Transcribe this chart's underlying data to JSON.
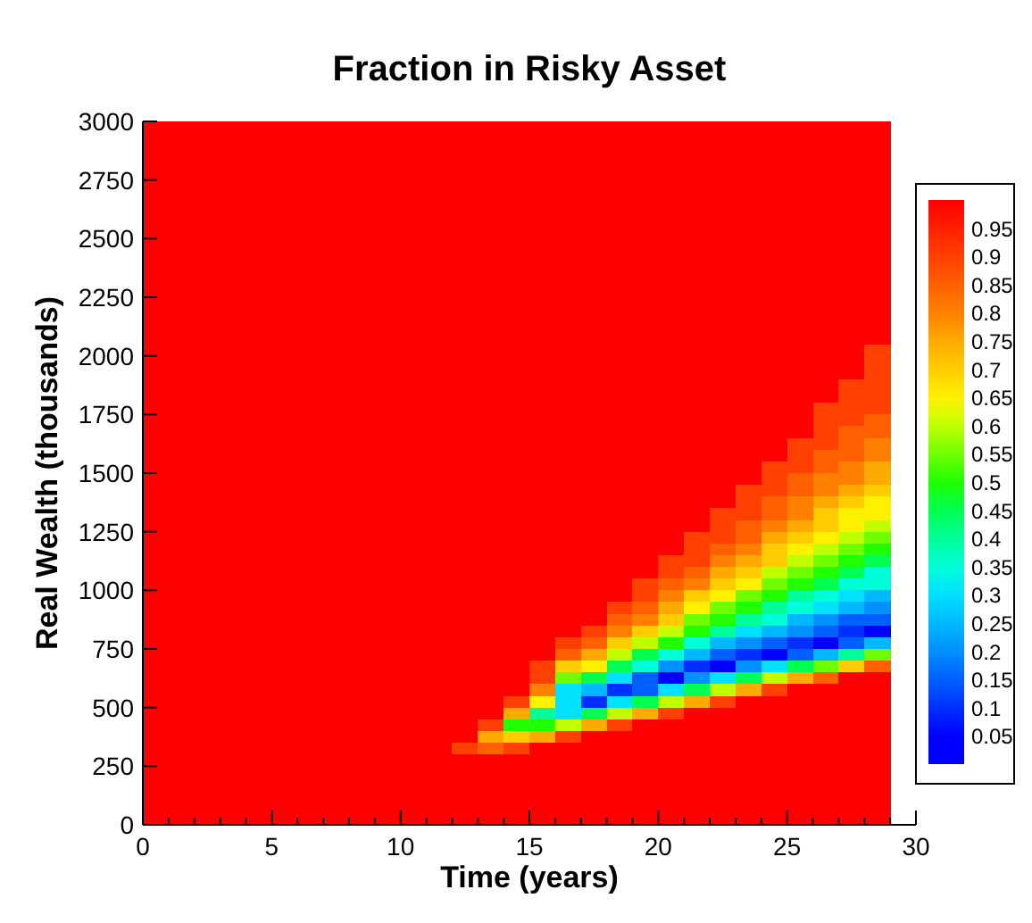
{
  "chart_data": {
    "type": "heatmap",
    "title": "Fraction in Risky Asset",
    "xlabel": "Time (years)",
    "ylabel": "Real Wealth (thousands)",
    "xlim": [
      0,
      30
    ],
    "ylim": [
      0,
      3000
    ],
    "xticks": [
      0,
      {
        "value": 1,
        "label": null
      },
      {
        "value": 2,
        "label": null
      },
      {
        "value": 3,
        "label": null
      },
      {
        "value": 4,
        "label": null
      },
      5,
      {
        "value": 6,
        "label": null
      },
      {
        "value": 7,
        "label": null
      },
      {
        "value": 8,
        "label": null
      },
      {
        "value": 9,
        "label": null
      },
      10,
      {
        "value": 11,
        "label": null
      },
      {
        "value": 12,
        "label": null
      },
      {
        "value": 13,
        "label": null
      },
      {
        "value": 14,
        "label": null
      },
      15,
      {
        "value": 16,
        "label": null
      },
      {
        "value": 17,
        "label": null
      },
      {
        "value": 18,
        "label": null
      },
      {
        "value": 19,
        "label": null
      },
      20,
      {
        "value": 21,
        "label": null
      },
      {
        "value": 22,
        "label": null
      },
      {
        "value": 23,
        "label": null
      },
      {
        "value": 24,
        "label": null
      },
      25,
      {
        "value": 26,
        "label": null
      },
      {
        "value": 27,
        "label": null
      },
      {
        "value": 28,
        "label": null
      },
      {
        "value": 29,
        "label": null
      },
      30
    ],
    "yticks": [
      0,
      250,
      500,
      750,
      1000,
      1250,
      1500,
      1750,
      2000,
      2250,
      2500,
      2750,
      3000
    ],
    "cticks": [
      0.05,
      0.1,
      0.15,
      0.2,
      0.25,
      0.3,
      0.35,
      0.4,
      0.45,
      0.5,
      0.55,
      0.6,
      0.65,
      0.7,
      0.75,
      0.8,
      0.85,
      0.9,
      0.95
    ],
    "clim": [
      0,
      1
    ],
    "x": [
      0.5,
      1.5,
      2.5,
      3.5,
      4.5,
      5.5,
      6.5,
      7.5,
      8.5,
      9.5,
      10.5,
      11.5,
      12.5,
      13.5,
      14.5,
      15.5,
      16.5,
      17.5,
      18.5,
      19.5,
      20.5,
      21.5,
      22.5,
      23.5,
      24.5,
      25.5,
      26.5,
      27.5,
      28.5
    ],
    "y": [
      2975,
      2925,
      2875,
      2825,
      2775,
      2725,
      2675,
      2625,
      2575,
      2525,
      2475,
      2425,
      2375,
      2325,
      2275,
      2225,
      2175,
      2125,
      2075,
      2025,
      1975,
      1925,
      1875,
      1825,
      1775,
      1725,
      1675,
      1625,
      1575,
      1525,
      1475,
      1425,
      1375,
      1325,
      1275,
      1225,
      1175,
      1125,
      1075,
      1025,
      975,
      925,
      875,
      825,
      775,
      725,
      675,
      625,
      575,
      525,
      475,
      425,
      375,
      325,
      275,
      225,
      175,
      125,
      75,
      25
    ],
    "cells": [
      [
        1,
        1,
        1,
        1,
        1,
        1,
        1,
        1,
        1,
        1,
        1,
        1,
        1,
        1,
        1,
        1,
        1,
        1,
        1,
        1,
        1,
        1,
        1,
        1,
        1,
        1,
        1,
        1,
        1
      ],
      [
        1,
        1,
        1,
        1,
        1,
        1,
        1,
        1,
        1,
        1,
        1,
        1,
        1,
        1,
        1,
        1,
        1,
        1,
        1,
        1,
        1,
        1,
        1,
        1,
        1,
        1,
        1,
        1,
        1
      ],
      [
        1,
        1,
        1,
        1,
        1,
        1,
        1,
        1,
        1,
        1,
        1,
        1,
        1,
        1,
        1,
        1,
        1,
        1,
        1,
        1,
        1,
        1,
        1,
        1,
        1,
        1,
        1,
        1,
        1
      ],
      [
        1,
        1,
        1,
        1,
        1,
        1,
        1,
        1,
        1,
        1,
        1,
        1,
        1,
        1,
        1,
        1,
        1,
        1,
        1,
        1,
        1,
        1,
        1,
        1,
        1,
        1,
        1,
        1,
        1
      ],
      [
        1,
        1,
        1,
        1,
        1,
        1,
        1,
        1,
        1,
        1,
        1,
        1,
        1,
        1,
        1,
        1,
        1,
        1,
        1,
        1,
        1,
        1,
        1,
        1,
        1,
        1,
        1,
        1,
        1
      ],
      [
        1,
        1,
        1,
        1,
        1,
        1,
        1,
        1,
        1,
        1,
        1,
        1,
        1,
        1,
        1,
        1,
        1,
        1,
        1,
        1,
        1,
        1,
        1,
        1,
        1,
        1,
        1,
        1,
        1
      ],
      [
        1,
        1,
        1,
        1,
        1,
        1,
        1,
        1,
        1,
        1,
        1,
        1,
        1,
        1,
        1,
        1,
        1,
        1,
        1,
        1,
        1,
        1,
        1,
        1,
        1,
        1,
        1,
        1,
        1
      ],
      [
        1,
        1,
        1,
        1,
        1,
        1,
        1,
        1,
        1,
        1,
        1,
        1,
        1,
        1,
        1,
        1,
        1,
        1,
        1,
        1,
        1,
        1,
        1,
        1,
        1,
        1,
        1,
        1,
        1
      ],
      [
        1,
        1,
        1,
        1,
        1,
        1,
        1,
        1,
        1,
        1,
        1,
        1,
        1,
        1,
        1,
        1,
        1,
        1,
        1,
        1,
        1,
        1,
        1,
        1,
        1,
        1,
        1,
        1,
        1
      ],
      [
        1,
        1,
        1,
        1,
        1,
        1,
        1,
        1,
        1,
        1,
        1,
        1,
        1,
        1,
        1,
        1,
        1,
        1,
        1,
        1,
        1,
        1,
        1,
        1,
        1,
        1,
        1,
        1,
        1
      ],
      [
        1,
        1,
        1,
        1,
        1,
        1,
        1,
        1,
        1,
        1,
        1,
        1,
        1,
        1,
        1,
        1,
        1,
        1,
        1,
        1,
        1,
        1,
        1,
        1,
        1,
        1,
        1,
        1,
        1
      ],
      [
        1,
        1,
        1,
        1,
        1,
        1,
        1,
        1,
        1,
        1,
        1,
        1,
        1,
        1,
        1,
        1,
        1,
        1,
        1,
        1,
        1,
        1,
        1,
        1,
        1,
        1,
        1,
        1,
        1
      ],
      [
        1,
        1,
        1,
        1,
        1,
        1,
        1,
        1,
        1,
        1,
        1,
        1,
        1,
        1,
        1,
        1,
        1,
        1,
        1,
        1,
        1,
        1,
        1,
        1,
        1,
        1,
        1,
        1,
        1
      ],
      [
        1,
        1,
        1,
        1,
        1,
        1,
        1,
        1,
        1,
        1,
        1,
        1,
        1,
        1,
        1,
        1,
        1,
        1,
        1,
        1,
        1,
        1,
        1,
        1,
        1,
        1,
        1,
        1,
        1
      ],
      [
        1,
        1,
        1,
        1,
        1,
        1,
        1,
        1,
        1,
        1,
        1,
        1,
        1,
        1,
        1,
        1,
        1,
        1,
        1,
        1,
        1,
        1,
        1,
        1,
        1,
        1,
        1,
        1,
        1
      ],
      [
        1,
        1,
        1,
        1,
        1,
        1,
        1,
        1,
        1,
        1,
        1,
        1,
        1,
        1,
        1,
        1,
        1,
        1,
        1,
        1,
        1,
        1,
        1,
        1,
        1,
        1,
        1,
        1,
        1
      ],
      [
        1,
        1,
        1,
        1,
        1,
        1,
        1,
        1,
        1,
        1,
        1,
        1,
        1,
        1,
        1,
        1,
        1,
        1,
        1,
        1,
        1,
        1,
        1,
        1,
        1,
        1,
        1,
        1,
        1
      ],
      [
        1,
        1,
        1,
        1,
        1,
        1,
        1,
        1,
        1,
        1,
        1,
        1,
        1,
        1,
        1,
        1,
        1,
        1,
        1,
        1,
        1,
        1,
        1,
        1,
        1,
        1,
        1,
        1,
        1
      ],
      [
        1,
        1,
        1,
        1,
        1,
        1,
        1,
        1,
        1,
        1,
        1,
        1,
        1,
        1,
        1,
        1,
        1,
        1,
        1,
        1,
        1,
        1,
        1,
        1,
        1,
        1,
        1,
        1,
        1
      ],
      [
        1,
        1,
        1,
        1,
        1,
        1,
        1,
        1,
        1,
        1,
        1,
        1,
        1,
        1,
        1,
        1,
        1,
        1,
        1,
        1,
        1,
        1,
        1,
        1,
        1,
        1,
        1,
        1,
        0.9
      ],
      [
        1,
        1,
        1,
        1,
        1,
        1,
        1,
        1,
        1,
        1,
        1,
        1,
        1,
        1,
        1,
        1,
        1,
        1,
        1,
        1,
        1,
        1,
        1,
        1,
        1,
        1,
        1,
        1,
        0.9
      ],
      [
        1,
        1,
        1,
        1,
        1,
        1,
        1,
        1,
        1,
        1,
        1,
        1,
        1,
        1,
        1,
        1,
        1,
        1,
        1,
        1,
        1,
        1,
        1,
        1,
        1,
        1,
        1,
        1,
        0.9
      ],
      [
        1,
        1,
        1,
        1,
        1,
        1,
        1,
        1,
        1,
        1,
        1,
        1,
        1,
        1,
        1,
        1,
        1,
        1,
        1,
        1,
        1,
        1,
        1,
        1,
        1,
        1,
        1,
        0.9,
        0.9
      ],
      [
        1,
        1,
        1,
        1,
        1,
        1,
        1,
        1,
        1,
        1,
        1,
        1,
        1,
        1,
        1,
        1,
        1,
        1,
        1,
        1,
        1,
        1,
        1,
        1,
        1,
        1,
        1,
        0.9,
        0.9
      ],
      [
        1,
        1,
        1,
        1,
        1,
        1,
        1,
        1,
        1,
        1,
        1,
        1,
        1,
        1,
        1,
        1,
        1,
        1,
        1,
        1,
        1,
        1,
        1,
        1,
        1,
        1,
        0.9,
        0.9,
        0.9
      ],
      [
        1,
        1,
        1,
        1,
        1,
        1,
        1,
        1,
        1,
        1,
        1,
        1,
        1,
        1,
        1,
        1,
        1,
        1,
        1,
        1,
        1,
        1,
        1,
        1,
        1,
        1,
        0.9,
        0.9,
        0.85
      ],
      [
        1,
        1,
        1,
        1,
        1,
        1,
        1,
        1,
        1,
        1,
        1,
        1,
        1,
        1,
        1,
        1,
        1,
        1,
        1,
        1,
        1,
        1,
        1,
        1,
        1,
        1,
        0.9,
        0.85,
        0.85
      ],
      [
        1,
        1,
        1,
        1,
        1,
        1,
        1,
        1,
        1,
        1,
        1,
        1,
        1,
        1,
        1,
        1,
        1,
        1,
        1,
        1,
        1,
        1,
        1,
        1,
        1,
        0.9,
        0.9,
        0.85,
        0.8
      ],
      [
        1,
        1,
        1,
        1,
        1,
        1,
        1,
        1,
        1,
        1,
        1,
        1,
        1,
        1,
        1,
        1,
        1,
        1,
        1,
        1,
        1,
        1,
        1,
        1,
        1,
        0.9,
        0.85,
        0.85,
        0.8
      ],
      [
        1,
        1,
        1,
        1,
        1,
        1,
        1,
        1,
        1,
        1,
        1,
        1,
        1,
        1,
        1,
        1,
        1,
        1,
        1,
        1,
        1,
        1,
        1,
        1,
        0.9,
        0.9,
        0.85,
        0.8,
        0.75
      ],
      [
        1,
        1,
        1,
        1,
        1,
        1,
        1,
        1,
        1,
        1,
        1,
        1,
        1,
        1,
        1,
        1,
        1,
        1,
        1,
        1,
        1,
        1,
        1,
        1,
        0.9,
        0.85,
        0.8,
        0.8,
        0.75
      ],
      [
        1,
        1,
        1,
        1,
        1,
        1,
        1,
        1,
        1,
        1,
        1,
        1,
        1,
        1,
        1,
        1,
        1,
        1,
        1,
        1,
        1,
        1,
        1,
        0.9,
        0.9,
        0.85,
        0.8,
        0.75,
        0.7
      ],
      [
        1,
        1,
        1,
        1,
        1,
        1,
        1,
        1,
        1,
        1,
        1,
        1,
        1,
        1,
        1,
        1,
        1,
        1,
        1,
        1,
        1,
        1,
        1,
        0.9,
        0.85,
        0.8,
        0.75,
        0.7,
        0.65
      ],
      [
        1,
        1,
        1,
        1,
        1,
        1,
        1,
        1,
        1,
        1,
        1,
        1,
        1,
        1,
        1,
        1,
        1,
        1,
        1,
        1,
        1,
        1,
        0.9,
        0.9,
        0.85,
        0.8,
        0.7,
        0.65,
        0.65
      ],
      [
        1,
        1,
        1,
        1,
        1,
        1,
        1,
        1,
        1,
        1,
        1,
        1,
        1,
        1,
        1,
        1,
        1,
        1,
        1,
        1,
        1,
        1,
        0.9,
        0.85,
        0.8,
        0.75,
        0.7,
        0.65,
        0.6
      ],
      [
        1,
        1,
        1,
        1,
        1,
        1,
        1,
        1,
        1,
        1,
        1,
        1,
        1,
        1,
        1,
        1,
        1,
        1,
        1,
        1,
        1,
        0.9,
        0.9,
        0.85,
        0.75,
        0.7,
        0.65,
        0.6,
        0.55
      ],
      [
        1,
        1,
        1,
        1,
        1,
        1,
        1,
        1,
        1,
        1,
        1,
        1,
        1,
        1,
        1,
        1,
        1,
        1,
        1,
        1,
        1,
        0.9,
        0.85,
        0.8,
        0.7,
        0.65,
        0.6,
        0.55,
        0.5
      ],
      [
        1,
        1,
        1,
        1,
        1,
        1,
        1,
        1,
        1,
        1,
        1,
        1,
        1,
        1,
        1,
        1,
        1,
        1,
        1,
        1,
        0.9,
        0.9,
        0.8,
        0.75,
        0.7,
        0.6,
        0.55,
        0.5,
        0.45
      ],
      [
        1,
        1,
        1,
        1,
        1,
        1,
        1,
        1,
        1,
        1,
        1,
        1,
        1,
        1,
        1,
        1,
        1,
        1,
        1,
        1,
        0.9,
        0.85,
        0.75,
        0.7,
        0.6,
        0.55,
        0.5,
        0.45,
        0.35
      ],
      [
        1,
        1,
        1,
        1,
        1,
        1,
        1,
        1,
        1,
        1,
        1,
        1,
        1,
        1,
        1,
        1,
        1,
        1,
        1,
        0.9,
        0.85,
        0.8,
        0.7,
        0.65,
        0.55,
        0.5,
        0.45,
        0.35,
        0.35
      ],
      [
        1,
        1,
        1,
        1,
        1,
        1,
        1,
        1,
        1,
        1,
        1,
        1,
        1,
        1,
        1,
        1,
        1,
        1,
        1,
        0.9,
        0.8,
        0.7,
        0.65,
        0.55,
        0.5,
        0.4,
        0.35,
        0.3,
        0.25
      ],
      [
        1,
        1,
        1,
        1,
        1,
        1,
        1,
        1,
        1,
        1,
        1,
        1,
        1,
        1,
        1,
        1,
        1,
        1,
        0.9,
        0.85,
        0.75,
        0.65,
        0.55,
        0.5,
        0.4,
        0.35,
        0.3,
        0.25,
        0.2
      ],
      [
        1,
        1,
        1,
        1,
        1,
        1,
        1,
        1,
        1,
        1,
        1,
        1,
        1,
        1,
        1,
        1,
        1,
        1,
        0.85,
        0.8,
        0.7,
        0.55,
        0.5,
        0.4,
        0.35,
        0.25,
        0.2,
        0.15,
        0.15
      ],
      [
        1,
        1,
        1,
        1,
        1,
        1,
        1,
        1,
        1,
        1,
        1,
        1,
        1,
        1,
        1,
        1,
        1,
        0.9,
        0.8,
        0.7,
        0.6,
        0.5,
        0.4,
        0.3,
        0.25,
        0.2,
        0.15,
        0.1,
        0.05
      ],
      [
        1,
        1,
        1,
        1,
        1,
        1,
        1,
        1,
        1,
        1,
        1,
        1,
        1,
        1,
        1,
        1,
        0.9,
        0.85,
        0.7,
        0.6,
        0.5,
        0.35,
        0.25,
        0.2,
        0.15,
        0.1,
        0.05,
        0.15,
        0.25
      ],
      [
        1,
        1,
        1,
        1,
        1,
        1,
        1,
        1,
        1,
        1,
        1,
        1,
        1,
        1,
        1,
        1,
        0.85,
        0.75,
        0.6,
        0.45,
        0.35,
        0.25,
        0.15,
        0.1,
        0.05,
        0.15,
        0.25,
        0.4,
        0.55
      ],
      [
        1,
        1,
        1,
        1,
        1,
        1,
        1,
        1,
        1,
        1,
        1,
        1,
        1,
        1,
        1,
        0.9,
        0.7,
        0.65,
        0.45,
        0.35,
        0.2,
        0.1,
        0.05,
        0.2,
        0.3,
        0.45,
        0.55,
        0.7,
        0.85
      ],
      [
        1,
        1,
        1,
        1,
        1,
        1,
        1,
        1,
        1,
        1,
        1,
        1,
        1,
        1,
        1,
        0.9,
        0.55,
        0.45,
        0.3,
        0.15,
        0.05,
        0.2,
        0.3,
        0.45,
        0.6,
        0.75,
        0.85,
        1,
        1
      ],
      [
        1,
        1,
        1,
        1,
        1,
        1,
        1,
        1,
        1,
        1,
        1,
        1,
        1,
        1,
        1,
        0.8,
        0.3,
        0.25,
        0.1,
        0.15,
        0.3,
        0.45,
        0.6,
        0.75,
        0.9,
        1,
        1,
        1,
        1
      ],
      [
        1,
        1,
        1,
        1,
        1,
        1,
        1,
        1,
        1,
        1,
        1,
        1,
        1,
        1,
        0.9,
        0.65,
        0.3,
        0.1,
        0.3,
        0.45,
        0.6,
        0.75,
        0.9,
        1,
        1,
        1,
        1,
        1,
        1
      ],
      [
        1,
        1,
        1,
        1,
        1,
        1,
        1,
        1,
        1,
        1,
        1,
        1,
        1,
        1,
        0.75,
        0.4,
        0.3,
        0.45,
        0.6,
        0.75,
        0.9,
        1,
        1,
        1,
        1,
        1,
        1,
        1,
        1
      ],
      [
        1,
        1,
        1,
        1,
        1,
        1,
        1,
        1,
        1,
        1,
        1,
        1,
        1,
        0.9,
        0.5,
        0.5,
        0.6,
        0.75,
        0.9,
        1,
        1,
        1,
        1,
        1,
        1,
        1,
        1,
        1,
        1
      ],
      [
        1,
        1,
        1,
        1,
        1,
        1,
        1,
        1,
        1,
        1,
        1,
        1,
        1,
        0.75,
        0.7,
        0.75,
        0.9,
        1,
        1,
        1,
        1,
        1,
        1,
        1,
        1,
        1,
        1,
        1,
        1
      ],
      [
        1,
        1,
        1,
        1,
        1,
        1,
        1,
        1,
        1,
        1,
        1,
        1,
        0.9,
        0.85,
        0.9,
        1,
        1,
        1,
        1,
        1,
        1,
        1,
        1,
        1,
        1,
        1,
        1,
        1,
        1
      ],
      [
        1,
        1,
        1,
        1,
        1,
        1,
        1,
        1,
        1,
        1,
        1,
        1,
        1,
        1,
        1,
        1,
        1,
        1,
        1,
        1,
        1,
        1,
        1,
        1,
        1,
        1,
        1,
        1,
        1
      ],
      [
        1,
        1,
        1,
        1,
        1,
        1,
        1,
        1,
        1,
        1,
        1,
        1,
        1,
        1,
        1,
        1,
        1,
        1,
        1,
        1,
        1,
        1,
        1,
        1,
        1,
        1,
        1,
        1,
        1
      ],
      [
        1,
        1,
        1,
        1,
        1,
        1,
        1,
        1,
        1,
        1,
        1,
        1,
        1,
        1,
        1,
        1,
        1,
        1,
        1,
        1,
        1,
        1,
        1,
        1,
        1,
        1,
        1,
        1,
        1
      ],
      [
        1,
        1,
        1,
        1,
        1,
        1,
        1,
        1,
        1,
        1,
        1,
        1,
        1,
        1,
        1,
        1,
        1,
        1,
        1,
        1,
        1,
        1,
        1,
        1,
        1,
        1,
        1,
        1,
        1
      ],
      [
        1,
        1,
        1,
        1,
        1,
        1,
        1,
        1,
        1,
        1,
        1,
        1,
        1,
        1,
        1,
        1,
        1,
        1,
        1,
        1,
        1,
        1,
        1,
        1,
        1,
        1,
        1,
        1,
        1
      ],
      [
        1,
        1,
        1,
        1,
        1,
        1,
        1,
        1,
        1,
        1,
        1,
        1,
        1,
        1,
        1,
        1,
        1,
        1,
        1,
        1,
        1,
        1,
        1,
        1,
        1,
        1,
        1,
        1,
        1
      ]
    ]
  }
}
